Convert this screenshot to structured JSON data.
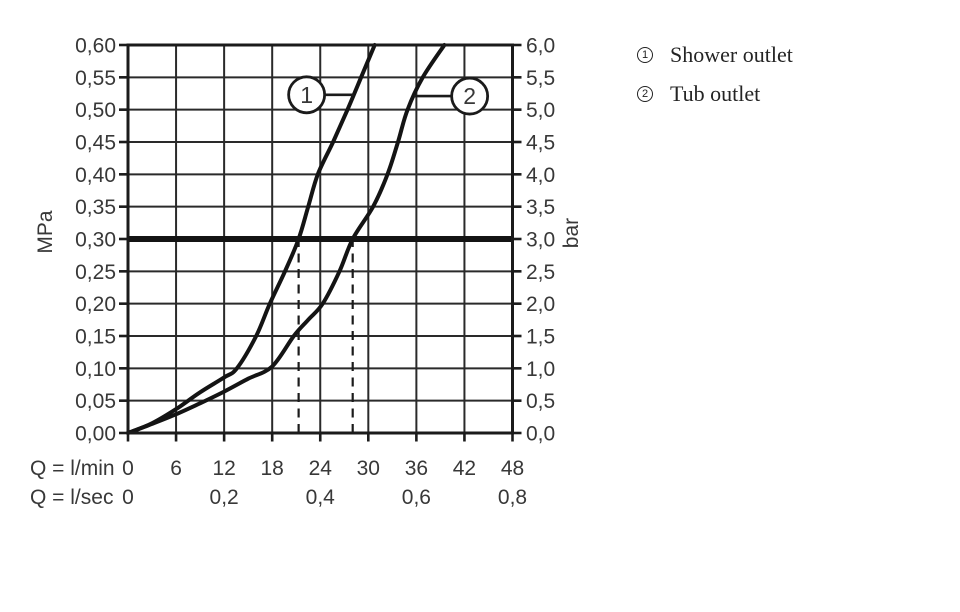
{
  "chart_data": {
    "type": "line",
    "description": "Flow rate versus pressure diagram with two curves",
    "x_axis": {
      "label_primary": "Q = l/min",
      "ticks_primary": [
        "0",
        "6",
        "12",
        "18",
        "24",
        "30",
        "36",
        "42",
        "48"
      ],
      "tick_values_primary": [
        0,
        6,
        12,
        18,
        24,
        30,
        36,
        42,
        48
      ],
      "label_secondary": "Q = l/sec",
      "ticks_secondary": [
        "0",
        "0,2",
        "0,4",
        "0,6",
        "0,8"
      ],
      "tick_values_secondary_lmin": [
        0,
        12,
        24,
        36,
        48
      ],
      "range_lmin": [
        0,
        48
      ]
    },
    "y_axis_left": {
      "label": "MPa",
      "ticks": [
        "0,00",
        "0,05",
        "0,10",
        "0,15",
        "0,20",
        "0,25",
        "0,30",
        "0,35",
        "0,40",
        "0,45",
        "0,50",
        "0,55",
        "0,60"
      ],
      "range": [
        0,
        0.6
      ]
    },
    "y_axis_right": {
      "label": "bar",
      "ticks": [
        "0,0",
        "0,5",
        "1,0",
        "1,5",
        "2,0",
        "2,5",
        "3,0",
        "3,5",
        "4,0",
        "4,5",
        "5,0",
        "5,5",
        "6,0"
      ],
      "range": [
        0,
        6
      ]
    },
    "grid": {
      "x_step_lmin": 6,
      "y_step_mpa": 0.05
    },
    "series": [
      {
        "id": "1",
        "name": "Shower outlet",
        "slug": "shower-outlet",
        "points_q_mpa": [
          [
            0,
            0
          ],
          [
            3,
            0.015
          ],
          [
            6,
            0.037
          ],
          [
            9,
            0.063
          ],
          [
            12,
            0.086
          ],
          [
            13.6,
            0.1
          ],
          [
            16,
            0.15
          ],
          [
            17.7,
            0.2
          ],
          [
            19.6,
            0.25
          ],
          [
            21.3,
            0.3
          ],
          [
            22.5,
            0.35
          ],
          [
            23.7,
            0.4
          ],
          [
            25.6,
            0.45
          ],
          [
            27.4,
            0.5
          ],
          [
            29.1,
            0.55
          ],
          [
            30.8,
            0.6
          ]
        ]
      },
      {
        "id": "2",
        "name": "Tub outlet",
        "slug": "tub-outlet",
        "points_q_mpa": [
          [
            0,
            0
          ],
          [
            3,
            0.014
          ],
          [
            6,
            0.029
          ],
          [
            9,
            0.046
          ],
          [
            12,
            0.064
          ],
          [
            15,
            0.084
          ],
          [
            18,
            0.103
          ],
          [
            20.7,
            0.15
          ],
          [
            22.5,
            0.175
          ],
          [
            24.3,
            0.2
          ],
          [
            26.4,
            0.25
          ],
          [
            28.05,
            0.3
          ],
          [
            30.6,
            0.35
          ],
          [
            32.4,
            0.4
          ],
          [
            33.7,
            0.45
          ],
          [
            34.9,
            0.5
          ],
          [
            36.8,
            0.55
          ],
          [
            39.5,
            0.6
          ]
        ]
      }
    ],
    "reference_lines": {
      "bold_pressure_mpa": 0.3,
      "dashed_flow_lmin": [
        21.3,
        28.05
      ]
    },
    "callouts": [
      {
        "label": "1",
        "series_index": 0,
        "center_q": 22.3,
        "center_p": 0.523
      },
      {
        "label": "2",
        "series_index": 1,
        "center_q": 42.65,
        "center_p": 0.521
      }
    ],
    "colors": {
      "ink": "#141414",
      "grid": "#2a2a2a",
      "frame": "#1b1b1b",
      "text": "#383838",
      "background": "#ffffff"
    }
  },
  "legend": {
    "items": [
      {
        "symbol": "1",
        "label": "Shower outlet"
      },
      {
        "symbol": "2",
        "label": "Tub outlet"
      }
    ]
  }
}
